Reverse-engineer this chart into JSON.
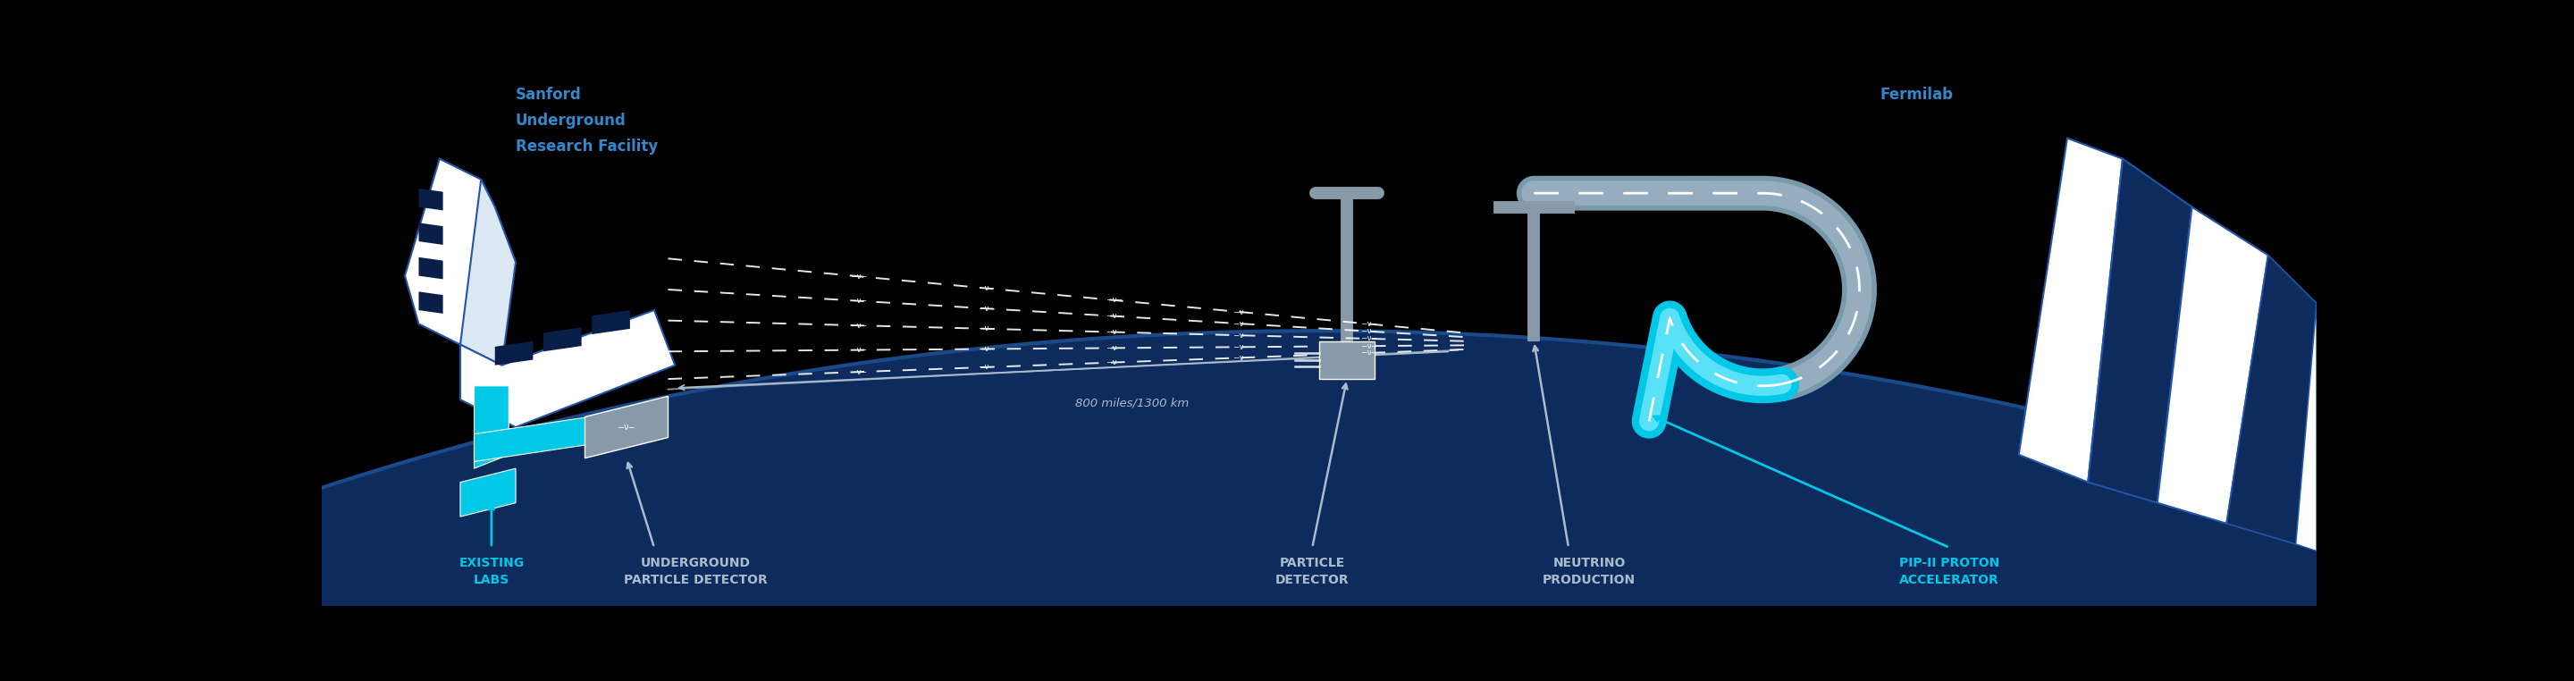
{
  "bg_color": "#000000",
  "earth_color": "#0d2b5c",
  "earth_edge": "#1a4a8a",
  "white": "#ffffff",
  "cyan": "#00c8e6",
  "blue_outline": "#2255aa",
  "steel": "#8899aa",
  "steel_light": "#aabbcc",
  "dark_blue_win": "#0a1e4a",
  "title_blue": "#3388cc",
  "label_gray": "#aabbcc",
  "sanford_label": "Sanford\nUnderground\nResearch Facility",
  "fermilab_label": "Fermilab",
  "existing_labs_label": "EXISTING\nLABS",
  "underground_detector_label": "UNDERGROUND\nPARTICLE DETECTOR",
  "particle_detector_label": "PARTICLE\nDETECTOR",
  "neutrino_production_label": "NEUTRINO\nPRODUCTION",
  "pip_label": "PIP-II PROTON\nACCELERATOR",
  "distance_label": "800 miles/1300 km",
  "figw": 28.8,
  "figh": 7.62
}
